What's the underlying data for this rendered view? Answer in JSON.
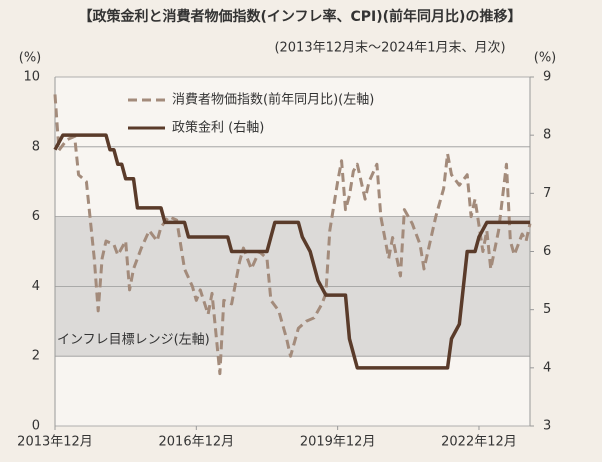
{
  "chart_data": {
    "type": "line",
    "title": "【政策金利と消費者物価指数(インフレ率、CPI)(前年同月比)の推移】",
    "subtitle": "(2013年12月末～2024年1月末、月次)",
    "y_unit": "(%)",
    "y2_unit": "(%)",
    "xlim": [
      "2013-12",
      "2024-01"
    ],
    "xticks": [
      {
        "value": "2013-12",
        "label": "2013年12月"
      },
      {
        "value": "2016-12",
        "label": "2016年12月"
      },
      {
        "value": "2019-12",
        "label": "2019年12月"
      },
      {
        "value": "2022-12",
        "label": "2022年12月"
      }
    ],
    "ylim": [
      0,
      10
    ],
    "yticks": [
      0,
      2,
      4,
      6,
      8,
      10
    ],
    "y2lim": [
      3,
      9
    ],
    "y2ticks": [
      3,
      4,
      5,
      6,
      7,
      8,
      9
    ],
    "grid": true,
    "band": {
      "label": "インフレ目標レンジ(左軸)",
      "range": [
        2,
        6
      ],
      "color": "#dcdad8"
    },
    "series": [
      {
        "name": "消費者物価指数(前年同月比)(左軸)",
        "color": "#a38b7b",
        "dash": true,
        "x": [
          "2013-12",
          "2014-01",
          "2014-03",
          "2014-05",
          "2014-06",
          "2014-08",
          "2014-09",
          "2014-10",
          "2014-11",
          "2014-12",
          "2015-01",
          "2015-03",
          "2015-04",
          "2015-06",
          "2015-07",
          "2015-08",
          "2015-10",
          "2015-12",
          "2016-02",
          "2016-03",
          "2016-05",
          "2016-07",
          "2016-09",
          "2016-11",
          "2016-12",
          "2017-01",
          "2017-03",
          "2017-04",
          "2017-06",
          "2017-07",
          "2017-09",
          "2017-11",
          "2017-12",
          "2018-02",
          "2018-04",
          "2018-06",
          "2018-07",
          "2018-09",
          "2018-11",
          "2018-12",
          "2019-02",
          "2019-04",
          "2019-06",
          "2019-08",
          "2019-09",
          "2019-10",
          "2019-12",
          "2020-01",
          "2020-02",
          "2020-03",
          "2020-04",
          "2020-05",
          "2020-07",
          "2020-08",
          "2020-10",
          "2020-11",
          "2021-01",
          "2021-02",
          "2021-04",
          "2021-05",
          "2021-07",
          "2021-09",
          "2021-10",
          "2021-12",
          "2022-01",
          "2022-03",
          "2022-04",
          "2022-05",
          "2022-07",
          "2022-09",
          "2022-10",
          "2022-11",
          "2023-01",
          "2023-02",
          "2023-03",
          "2023-05",
          "2023-07",
          "2023-08",
          "2023-09",
          "2023-11",
          "2023-12",
          "2024-01"
        ],
        "values": [
          9.5,
          7.9,
          8.2,
          8.3,
          7.2,
          7.0,
          5.9,
          4.8,
          3.3,
          4.8,
          5.3,
          5.2,
          4.9,
          5.3,
          3.9,
          4.5,
          5.1,
          5.6,
          5.3,
          5.7,
          6.0,
          5.9,
          4.5,
          4.0,
          3.6,
          3.9,
          3.2,
          3.8,
          1.5,
          3.6,
          3.5,
          4.7,
          5.1,
          4.5,
          5.0,
          4.8,
          3.6,
          3.3,
          2.5,
          2.0,
          2.8,
          3.0,
          3.1,
          3.5,
          3.8,
          5.6,
          7.0,
          7.6,
          6.2,
          6.6,
          7.3,
          7.5,
          6.5,
          7.0,
          7.5,
          6.0,
          4.8,
          5.4,
          4.3,
          6.2,
          5.8,
          5.2,
          4.5,
          5.5,
          6.0,
          6.8,
          7.8,
          7.2,
          6.9,
          7.2,
          6.0,
          6.5,
          5.0,
          5.6,
          4.5,
          5.6,
          7.5,
          5.3,
          4.9,
          5.5,
          5.3,
          5.8
        ]
      },
      {
        "name": "政策金利 (右軸)",
        "color": "#5a3b2a",
        "dash": false,
        "axis": "y2",
        "x": [
          "2013-12",
          "2014-02",
          "2015-01",
          "2015-02",
          "2015-03",
          "2015-04",
          "2015-05",
          "2015-06",
          "2015-08",
          "2015-09",
          "2016-03",
          "2016-04",
          "2016-09",
          "2016-10",
          "2017-08",
          "2017-09",
          "2018-06",
          "2018-07",
          "2018-08",
          "2019-02",
          "2019-03",
          "2019-05",
          "2019-06",
          "2019-07",
          "2019-09",
          "2020-02",
          "2020-03",
          "2020-05",
          "2022-04",
          "2022-05",
          "2022-07",
          "2022-09",
          "2022-11",
          "2022-12",
          "2023-02",
          "2024-01"
        ],
        "values": [
          7.75,
          8.0,
          8.0,
          7.75,
          7.75,
          7.5,
          7.5,
          7.25,
          7.25,
          6.75,
          6.75,
          6.5,
          6.5,
          6.25,
          6.25,
          6.0,
          6.0,
          6.25,
          6.5,
          6.5,
          6.25,
          6.0,
          5.75,
          5.5,
          5.25,
          5.25,
          4.5,
          4.0,
          4.0,
          4.5,
          4.75,
          6.0,
          6.0,
          6.25,
          6.5,
          6.5
        ]
      }
    ]
  }
}
